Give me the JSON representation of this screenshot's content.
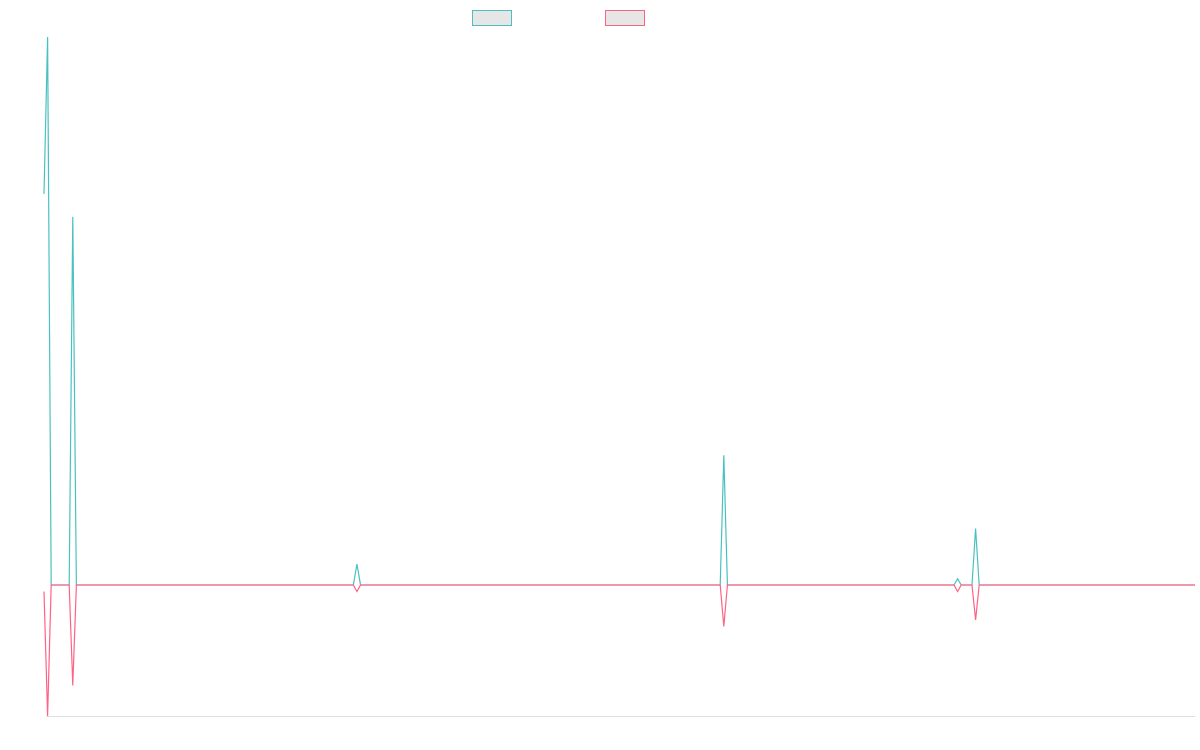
{
  "chart_data": {
    "type": "line",
    "title": "",
    "xlabel": "",
    "ylabel": "",
    "legend_position": "top-center",
    "grid": false,
    "xlim": [
      0,
      64
    ],
    "ylim": [
      -0.48,
      2.6
    ],
    "x": [
      0,
      0.2,
      0.4,
      0.6,
      1.4,
      1.6,
      1.8,
      2.6,
      17.2,
      17.4,
      17.6,
      37.6,
      37.8,
      38.0,
      50.6,
      50.8,
      51.0,
      51.6,
      51.8,
      52.0,
      64
    ],
    "series": [
      {
        "color": "#4bc0c0",
        "values": [
          1.87,
          2.62,
          0.0,
          0.0,
          0.0,
          1.76,
          0.0,
          0.0,
          0.0,
          0.1,
          0.0,
          0.0,
          0.62,
          0.0,
          0.0,
          0.03,
          0.0,
          0.0,
          0.27,
          0.0,
          0.0
        ]
      },
      {
        "color": "#ff6384",
        "values": [
          -0.03,
          -0.6,
          0.0,
          0.0,
          0.0,
          -0.46,
          0.0,
          0.0,
          0.0,
          -0.03,
          0.0,
          0.0,
          -0.19,
          0.0,
          0.0,
          -0.03,
          0.0,
          0.0,
          -0.16,
          0.0,
          0.0
        ]
      }
    ],
    "legend_swatch_fill": "#e6e6e6",
    "axis_color": "#e0e0e0"
  }
}
